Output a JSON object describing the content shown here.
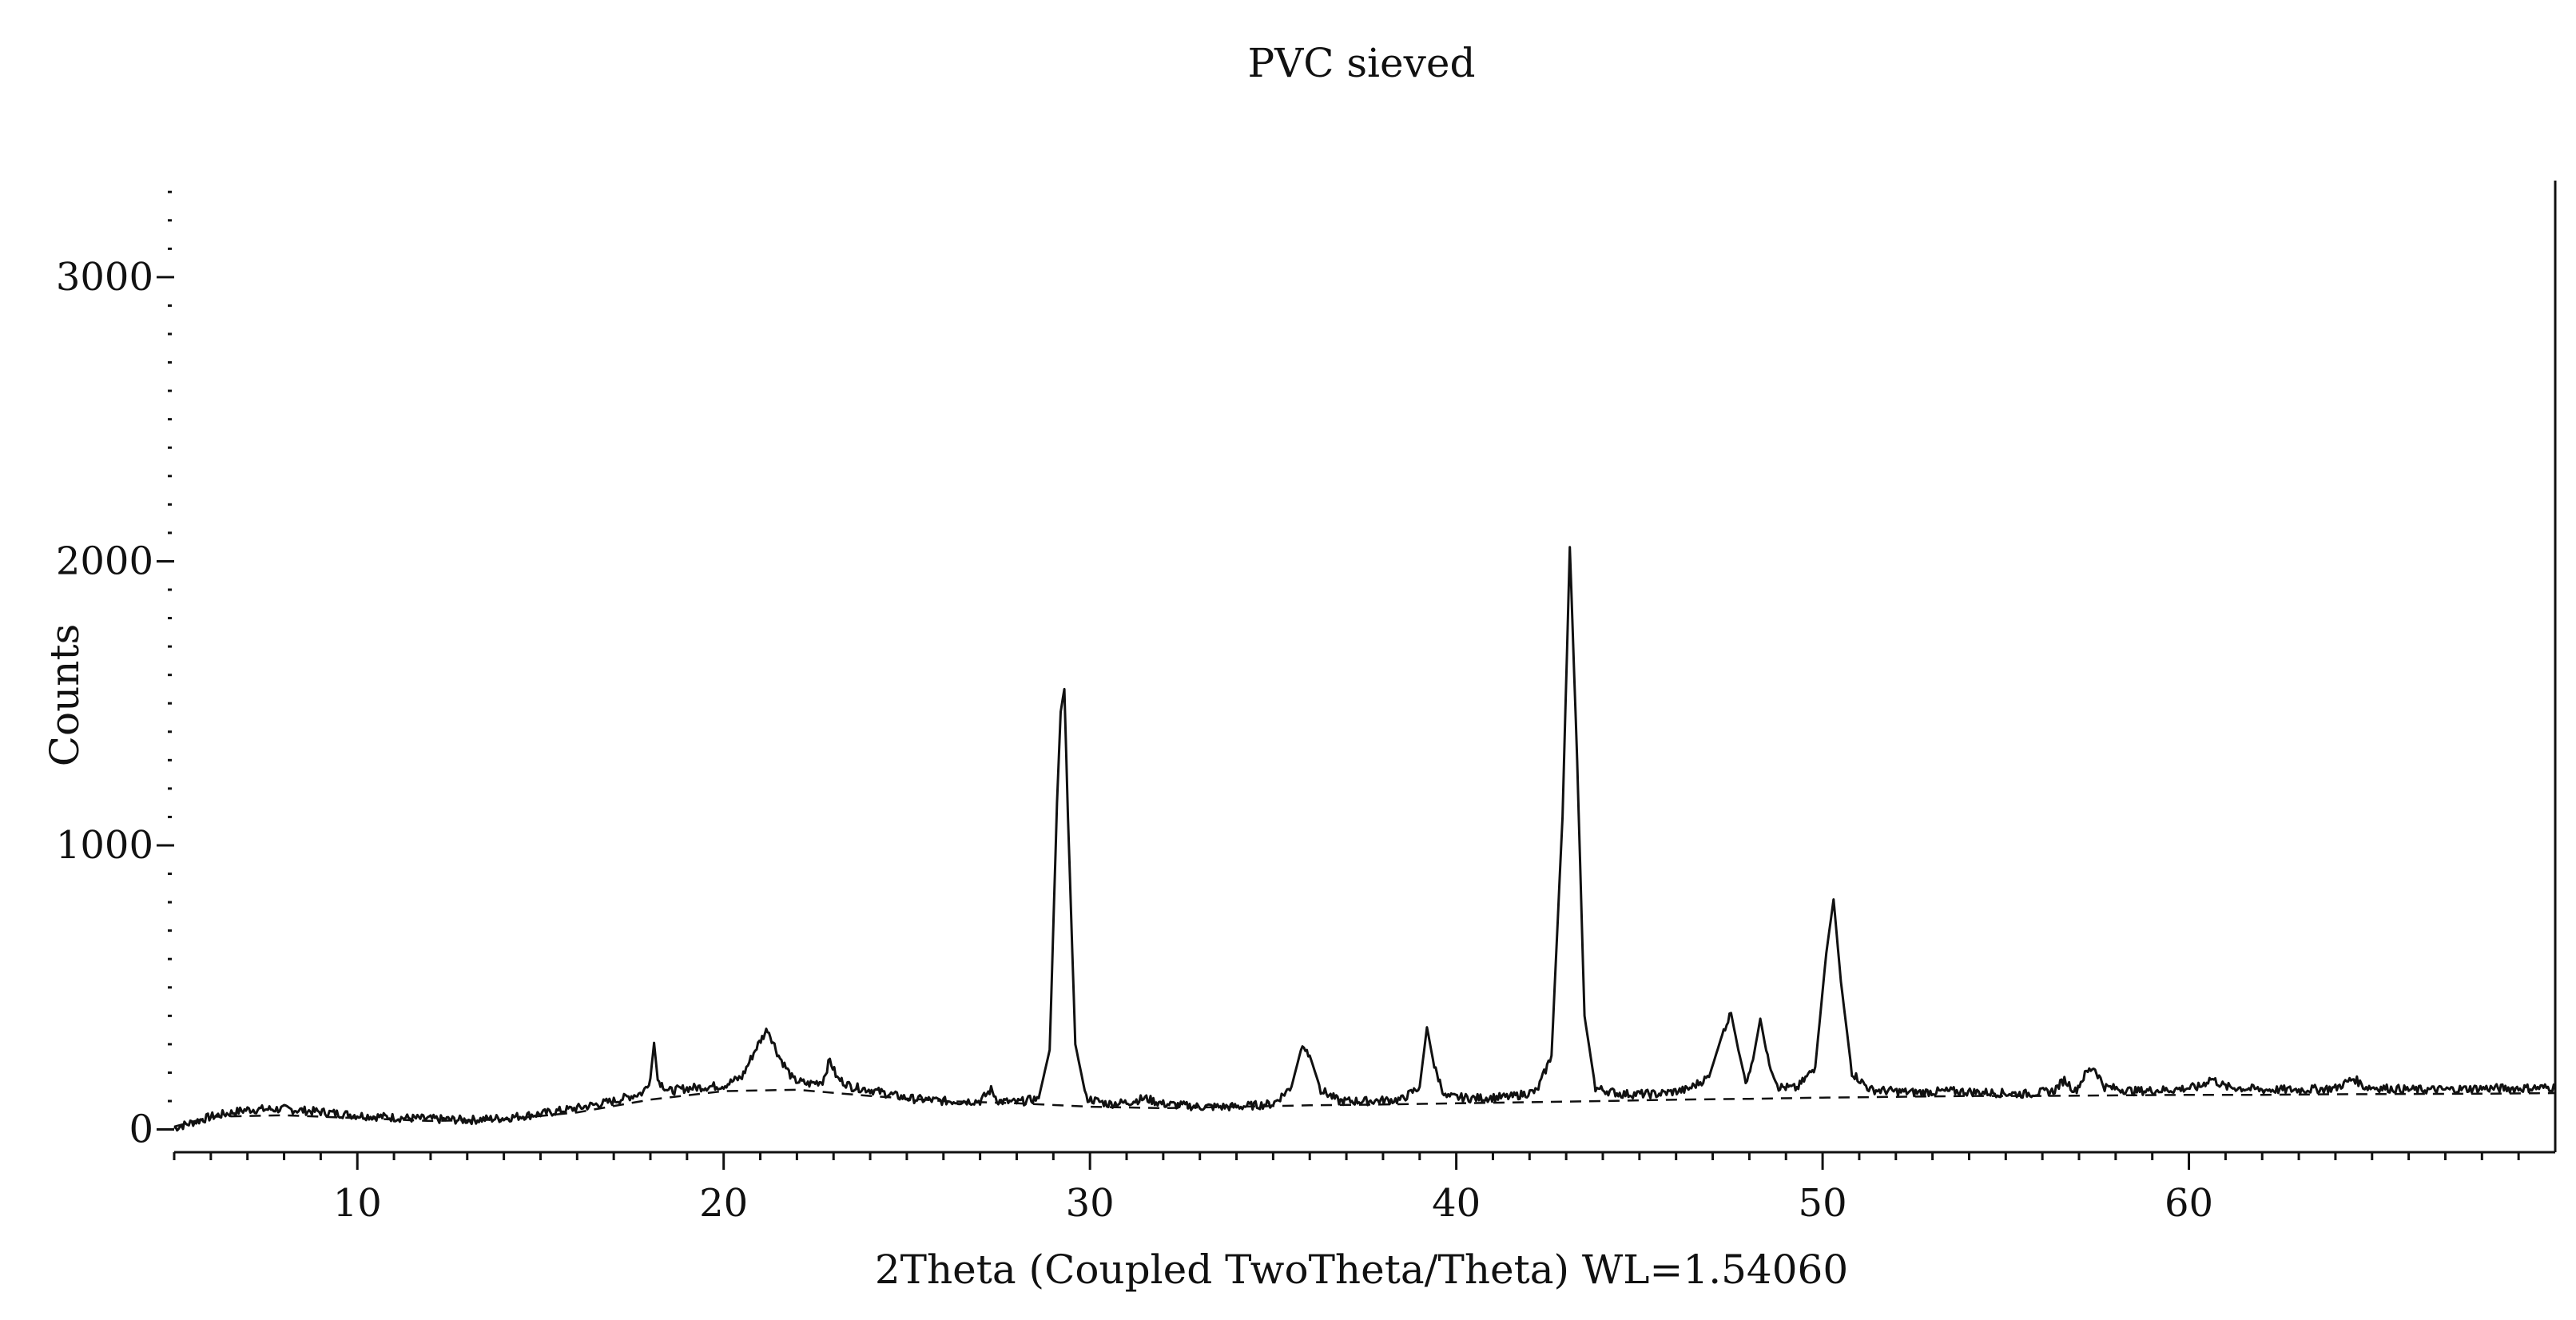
{
  "chart_data": {
    "type": "line",
    "title": "PVC sieved",
    "xlabel": "2Theta (Coupled TwoTheta/Theta) WL=1.54060",
    "ylabel": "Counts",
    "xlim": [
      5,
      70
    ],
    "ylim": [
      -80,
      3340
    ],
    "x_ticks": [
      10,
      20,
      30,
      40,
      50,
      60
    ],
    "x_tick_labels": [
      "10",
      "20",
      "30",
      "40",
      "50",
      "60"
    ],
    "y_ticks": [
      0,
      1000,
      2000,
      3000
    ],
    "y_tick_labels": [
      "0",
      "1000",
      "2000",
      "3000"
    ],
    "y_minor_step": 100,
    "grid": false,
    "legend": "none",
    "colors": {
      "line": "#111111",
      "background": "#ffffff"
    },
    "background_curve": [
      [
        5,
        10
      ],
      [
        6,
        45
      ],
      [
        8,
        50
      ],
      [
        10,
        40
      ],
      [
        12,
        30
      ],
      [
        14,
        35
      ],
      [
        16,
        60
      ],
      [
        18,
        105
      ],
      [
        20,
        135
      ],
      [
        22,
        140
      ],
      [
        24,
        118
      ],
      [
        26,
        100
      ],
      [
        28,
        92
      ],
      [
        30,
        80
      ],
      [
        32,
        75
      ],
      [
        34,
        80
      ],
      [
        36,
        85
      ],
      [
        38,
        88
      ],
      [
        40,
        92
      ],
      [
        42,
        96
      ],
      [
        44,
        100
      ],
      [
        46,
        105
      ],
      [
        48,
        108
      ],
      [
        50,
        112
      ],
      [
        52,
        115
      ],
      [
        54,
        118
      ],
      [
        56,
        118
      ],
      [
        58,
        120
      ],
      [
        60,
        122
      ],
      [
        62,
        122
      ],
      [
        64,
        124
      ],
      [
        66,
        125
      ],
      [
        68,
        126
      ],
      [
        70,
        128
      ]
    ],
    "series": [
      {
        "points": [
          [
            5,
            5
          ],
          [
            6,
            45
          ],
          [
            7,
            70
          ],
          [
            8,
            72
          ],
          [
            9,
            62
          ],
          [
            10,
            50
          ],
          [
            11,
            42
          ],
          [
            12,
            37
          ],
          [
            13,
            33
          ],
          [
            14,
            40
          ],
          [
            15,
            55
          ],
          [
            16,
            75
          ],
          [
            17,
            100
          ],
          [
            17.8,
            130
          ],
          [
            18.0,
            180
          ],
          [
            18.1,
            305
          ],
          [
            18.2,
            175
          ],
          [
            18.5,
            135
          ],
          [
            19,
            145
          ],
          [
            19.5,
            150
          ],
          [
            20,
            155
          ],
          [
            20.5,
            185
          ],
          [
            20.9,
            290
          ],
          [
            21.2,
            355
          ],
          [
            21.5,
            260
          ],
          [
            21.9,
            175
          ],
          [
            22.3,
            160
          ],
          [
            22.7,
            170
          ],
          [
            22.9,
            245
          ],
          [
            23.1,
            180
          ],
          [
            23.5,
            150
          ],
          [
            24,
            140
          ],
          [
            24.5,
            125
          ],
          [
            25,
            110
          ],
          [
            26,
            100
          ],
          [
            27,
            100
          ],
          [
            27.3,
            140
          ],
          [
            27.5,
            100
          ],
          [
            28,
            95
          ],
          [
            28.6,
            110
          ],
          [
            28.9,
            280
          ],
          [
            29.1,
            1150
          ],
          [
            29.2,
            1470
          ],
          [
            29.3,
            1550
          ],
          [
            29.4,
            1100
          ],
          [
            29.6,
            300
          ],
          [
            29.9,
            110
          ],
          [
            30.5,
            90
          ],
          [
            31.0,
            95
          ],
          [
            31.5,
            110
          ],
          [
            32,
            90
          ],
          [
            33,
            80
          ],
          [
            34,
            80
          ],
          [
            35,
            90
          ],
          [
            35.5,
            150
          ],
          [
            35.8,
            300
          ],
          [
            36.0,
            260
          ],
          [
            36.3,
            140
          ],
          [
            36.8,
            100
          ],
          [
            37.5,
            100
          ],
          [
            38.5,
            105
          ],
          [
            39.0,
            150
          ],
          [
            39.2,
            360
          ],
          [
            39.4,
            220
          ],
          [
            39.7,
            115
          ],
          [
            40.5,
            110
          ],
          [
            41.5,
            115
          ],
          [
            42.2,
            135
          ],
          [
            42.6,
            260
          ],
          [
            42.9,
            1100
          ],
          [
            43.1,
            2050
          ],
          [
            43.3,
            1300
          ],
          [
            43.5,
            400
          ],
          [
            43.8,
            145
          ],
          [
            44.5,
            125
          ],
          [
            45.5,
            125
          ],
          [
            46.3,
            140
          ],
          [
            46.9,
            185
          ],
          [
            47.3,
            350
          ],
          [
            47.5,
            410
          ],
          [
            47.7,
            280
          ],
          [
            47.9,
            170
          ],
          [
            48.1,
            245
          ],
          [
            48.3,
            390
          ],
          [
            48.5,
            250
          ],
          [
            48.8,
            150
          ],
          [
            49.3,
            145
          ],
          [
            49.8,
            220
          ],
          [
            50.1,
            620
          ],
          [
            50.3,
            810
          ],
          [
            50.5,
            520
          ],
          [
            50.8,
            200
          ],
          [
            51.3,
            140
          ],
          [
            52.5,
            130
          ],
          [
            53.5,
            135
          ],
          [
            54.5,
            130
          ],
          [
            55.5,
            125
          ],
          [
            56.3,
            135
          ],
          [
            56.6,
            175
          ],
          [
            56.9,
            135
          ],
          [
            57.2,
            200
          ],
          [
            57.4,
            220
          ],
          [
            57.7,
            150
          ],
          [
            58.5,
            135
          ],
          [
            59.5,
            140
          ],
          [
            60.3,
            150
          ],
          [
            60.6,
            180
          ],
          [
            61.0,
            150
          ],
          [
            62,
            140
          ],
          [
            63,
            140
          ],
          [
            64,
            145
          ],
          [
            64.5,
            180
          ],
          [
            64.8,
            150
          ],
          [
            66,
            140
          ],
          [
            67,
            140
          ],
          [
            68,
            145
          ],
          [
            69,
            145
          ],
          [
            70,
            148
          ]
        ]
      }
    ]
  }
}
